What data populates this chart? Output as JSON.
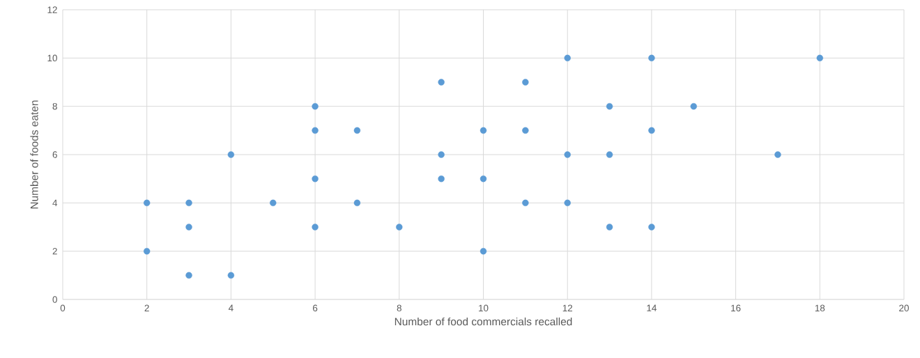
{
  "chart_data": {
    "type": "scatter",
    "xlabel": "Number of food commercials recalled",
    "ylabel": "Number of foods eaten",
    "x": [
      2,
      2,
      3,
      3,
      3,
      4,
      4,
      5,
      6,
      6,
      6,
      6,
      7,
      7,
      8,
      9,
      9,
      9,
      10,
      10,
      10,
      11,
      11,
      11,
      12,
      12,
      12,
      13,
      13,
      13,
      14,
      14,
      14,
      15,
      17,
      18
    ],
    "values": [
      4,
      2,
      4,
      3,
      1,
      6,
      1,
      4,
      8,
      7,
      5,
      3,
      7,
      4,
      3,
      9,
      6,
      5,
      7,
      5,
      2,
      9,
      7,
      4,
      10,
      6,
      4,
      8,
      6,
      3,
      10,
      7,
      3,
      8,
      6,
      10
    ],
    "color": "#5b9bd5",
    "marker": "circle",
    "xlim": [
      0,
      20
    ],
    "xticks": [
      0,
      2,
      4,
      6,
      8,
      10,
      12,
      14,
      16,
      18,
      20
    ],
    "ylim": [
      0,
      12
    ],
    "yticks": [
      0,
      2,
      4,
      6,
      8,
      10,
      12
    ],
    "grid": true
  }
}
